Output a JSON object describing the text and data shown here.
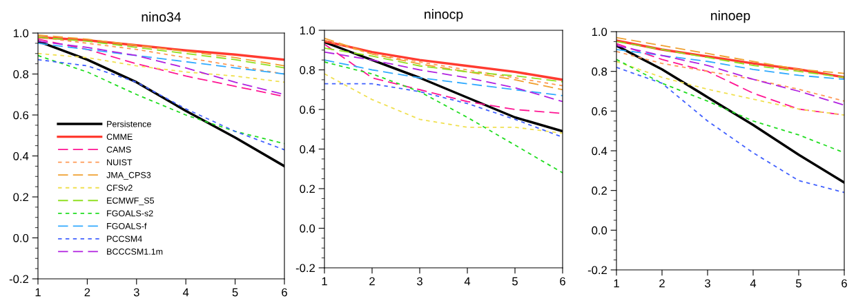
{
  "chart_data": [
    {
      "type": "line",
      "title": "nino34",
      "x": [
        1,
        2,
        3,
        4,
        5,
        6
      ],
      "xlim": [
        1,
        6
      ],
      "xticks": [
        1,
        2,
        3,
        4,
        5,
        6
      ],
      "ylim": [
        -0.2,
        1.0
      ],
      "yticks": [
        {
          "value": -0.2,
          "label": "-0.2"
        },
        {
          "value": 0.0,
          "label": "0.0"
        },
        {
          "value": 0.2,
          "label": "0.2"
        },
        {
          "value": 0.4,
          "label": "0.4"
        },
        {
          "value": 0.6,
          "label": "0.6"
        },
        {
          "value": 0.8,
          "label": "0.8"
        },
        {
          "value": 1.0,
          "label": "1.0"
        }
      ],
      "grid": false,
      "legend": "bottom left",
      "marker": "none",
      "series": [
        {
          "name": "Persistence",
          "color": "#000000",
          "line_style": "solid",
          "values": [
            0.96,
            0.87,
            0.76,
            0.62,
            0.49,
            0.35
          ]
        },
        {
          "name": "CMME",
          "color": "#ff3b30",
          "line_style": "solid",
          "values": [
            0.98,
            0.965,
            0.94,
            0.915,
            0.895,
            0.87
          ]
        },
        {
          "name": "CAMS",
          "color": "#ff1493",
          "line_style": "dashed",
          "values": [
            0.97,
            0.92,
            0.85,
            0.79,
            0.74,
            0.69
          ]
        },
        {
          "name": "NUIST",
          "color": "#ff9955",
          "line_style": "dotted",
          "values": [
            0.98,
            0.95,
            0.92,
            0.88,
            0.84,
            0.8
          ]
        },
        {
          "name": "JMA_CPS3",
          "color": "#f0a030",
          "line_style": "dashed",
          "values": [
            0.99,
            0.97,
            0.94,
            0.91,
            0.88,
            0.84
          ]
        },
        {
          "name": "CFSv2",
          "color": "#f0e050",
          "line_style": "dotted",
          "values": [
            0.9,
            0.88,
            0.84,
            0.81,
            0.79,
            0.76
          ]
        },
        {
          "name": "ECMWF_S5",
          "color": "#90e020",
          "line_style": "dashed",
          "values": [
            0.98,
            0.96,
            0.93,
            0.9,
            0.87,
            0.83
          ]
        },
        {
          "name": "FGOALS-s2",
          "color": "#20dd20",
          "line_style": "dotted",
          "values": [
            0.89,
            0.81,
            0.7,
            0.6,
            0.52,
            0.46
          ]
        },
        {
          "name": "FGOALS-f",
          "color": "#30aaff",
          "line_style": "dashed",
          "values": [
            0.95,
            0.92,
            0.89,
            0.86,
            0.83,
            0.8
          ]
        },
        {
          "name": "PCCSM4",
          "color": "#4060ff",
          "line_style": "dotted",
          "values": [
            0.87,
            0.84,
            0.76,
            0.63,
            0.52,
            0.43
          ]
        },
        {
          "name": "BCCCSM1.1m",
          "color": "#b020e0",
          "line_style": "dashed",
          "values": [
            0.96,
            0.93,
            0.89,
            0.83,
            0.76,
            0.7
          ]
        }
      ]
    },
    {
      "type": "line",
      "title": "ninocp",
      "x": [
        1,
        2,
        3,
        4,
        5,
        6
      ],
      "xlim": [
        1,
        6
      ],
      "xticks": [
        1,
        2,
        3,
        4,
        5,
        6
      ],
      "ylim": [
        -0.2,
        1.0
      ],
      "yticks": [
        {
          "value": -0.2,
          "label": "-0.2"
        },
        {
          "value": 0.0,
          "label": "0.0"
        },
        {
          "value": 0.2,
          "label": "0.2"
        },
        {
          "value": 0.4,
          "label": "0.4"
        },
        {
          "value": 0.6,
          "label": "0.6"
        },
        {
          "value": 0.8,
          "label": "0.8"
        },
        {
          "value": 1.0,
          "label": "1.0"
        }
      ],
      "grid": false,
      "marker": "none",
      "series": [
        {
          "color": "#000000",
          "line_style": "solid",
          "values": [
            0.94,
            0.85,
            0.76,
            0.66,
            0.56,
            0.49
          ]
        },
        {
          "color": "#ff3b30",
          "line_style": "solid",
          "values": [
            0.945,
            0.89,
            0.85,
            0.82,
            0.79,
            0.75
          ]
        },
        {
          "color": "#ff1493",
          "line_style": "dashed",
          "values": [
            0.93,
            0.76,
            0.7,
            0.64,
            0.6,
            0.58
          ]
        },
        {
          "color": "#ff9955",
          "line_style": "dotted",
          "values": [
            0.95,
            0.88,
            0.84,
            0.8,
            0.76,
            0.72
          ]
        },
        {
          "color": "#f0a030",
          "line_style": "dashed",
          "values": [
            0.96,
            0.88,
            0.83,
            0.79,
            0.75,
            0.7
          ]
        },
        {
          "color": "#f0e050",
          "line_style": "dotted",
          "values": [
            0.78,
            0.65,
            0.55,
            0.51,
            0.51,
            0.48
          ]
        },
        {
          "color": "#90e020",
          "line_style": "dashed",
          "values": [
            0.91,
            0.87,
            0.82,
            0.79,
            0.77,
            0.74
          ]
        },
        {
          "color": "#20dd20",
          "line_style": "dotted",
          "values": [
            0.84,
            0.78,
            0.69,
            0.56,
            0.42,
            0.28
          ]
        },
        {
          "color": "#30aaff",
          "line_style": "dashed",
          "values": [
            0.85,
            0.8,
            0.76,
            0.73,
            0.7,
            0.67
          ]
        },
        {
          "color": "#4060ff",
          "line_style": "dotted",
          "values": [
            0.73,
            0.73,
            0.69,
            0.63,
            0.55,
            0.46
          ]
        },
        {
          "color": "#b020e0",
          "line_style": "dashed",
          "values": [
            0.89,
            0.85,
            0.8,
            0.76,
            0.71,
            0.64
          ]
        }
      ]
    },
    {
      "type": "line",
      "title": "ninoep",
      "x": [
        1,
        2,
        3,
        4,
        5,
        6
      ],
      "xlim": [
        1,
        6
      ],
      "xticks": [
        1,
        2,
        3,
        4,
        5,
        6
      ],
      "ylim": [
        -0.2,
        1.0
      ],
      "yticks": [
        {
          "value": -0.2,
          "label": "-0.2"
        },
        {
          "value": 0.0,
          "label": "0.0"
        },
        {
          "value": 0.2,
          "label": "0.2"
        },
        {
          "value": 0.4,
          "label": "0.4"
        },
        {
          "value": 0.6,
          "label": "0.6"
        },
        {
          "value": 0.8,
          "label": "0.8"
        },
        {
          "value": 1.0,
          "label": "1.0"
        }
      ],
      "grid": false,
      "marker": "none",
      "series": [
        {
          "color": "#000000",
          "line_style": "solid",
          "values": [
            0.93,
            0.81,
            0.67,
            0.53,
            0.38,
            0.24
          ]
        },
        {
          "color": "#ff3b30",
          "line_style": "solid",
          "values": [
            0.955,
            0.91,
            0.875,
            0.84,
            0.81,
            0.77
          ]
        },
        {
          "color": "#ff1493",
          "line_style": "dashed",
          "values": [
            0.94,
            0.86,
            0.8,
            0.69,
            0.61,
            0.58
          ]
        },
        {
          "color": "#ff9955",
          "line_style": "dotted",
          "values": [
            0.9,
            0.84,
            0.8,
            0.76,
            0.71,
            0.65
          ]
        },
        {
          "color": "#f0a030",
          "line_style": "dashed",
          "values": [
            0.97,
            0.93,
            0.89,
            0.85,
            0.81,
            0.79
          ]
        },
        {
          "color": "#f0e050",
          "line_style": "dotted",
          "values": [
            0.85,
            0.77,
            0.71,
            0.66,
            0.61,
            0.58
          ]
        },
        {
          "color": "#90e020",
          "line_style": "dashed",
          "values": [
            0.95,
            0.91,
            0.87,
            0.83,
            0.8,
            0.77
          ]
        },
        {
          "color": "#20dd20",
          "line_style": "dotted",
          "values": [
            0.86,
            0.74,
            0.65,
            0.55,
            0.48,
            0.39
          ]
        },
        {
          "color": "#30aaff",
          "line_style": "dashed",
          "values": [
            0.91,
            0.88,
            0.85,
            0.81,
            0.78,
            0.76
          ]
        },
        {
          "color": "#4060ff",
          "line_style": "dotted",
          "values": [
            0.82,
            0.74,
            0.55,
            0.39,
            0.25,
            0.19
          ]
        },
        {
          "color": "#b020e0",
          "line_style": "dashed",
          "values": [
            0.93,
            0.88,
            0.83,
            0.76,
            0.7,
            0.63
          ]
        }
      ]
    }
  ]
}
